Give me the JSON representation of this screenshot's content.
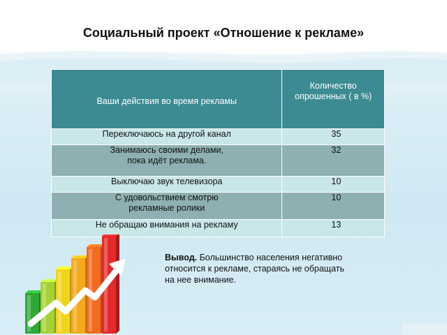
{
  "slide": {
    "title": "Социальный проект «Отношение к рекламе»"
  },
  "table": {
    "headers": {
      "actions": "Ваши действия во время рекламы",
      "count_line1": "Количество",
      "count_line2": "опрошенных ( в %)"
    },
    "rows": [
      {
        "action_lines": [
          "Переключаюсь на другой канал"
        ],
        "value": "35"
      },
      {
        "action_lines": [
          "Занимаюсь своими делами,",
          "пока идёт реклама."
        ],
        "value": "32"
      },
      {
        "action_lines": [
          "Выключаю звук телевизора"
        ],
        "value": "10"
      },
      {
        "action_lines": [
          "С удовольствием  смотрю",
          "рекламные ролики"
        ],
        "value": "10"
      },
      {
        "action_lines": [
          "Не обращаю внимания на рекламу"
        ],
        "value": "13"
      }
    ]
  },
  "conclusion": {
    "label": "Вывод.",
    "line1": " Большинство населения негативно",
    "line2": "относится к рекламе, стараясь  не обращать",
    "line3": "на нее  внимание."
  },
  "decoration": {
    "chart_icon": "bar-chart-growth-icon",
    "bar_colors": [
      "#2ea836",
      "#a6d036",
      "#f2d31c",
      "#f6a91c",
      "#f26a1f",
      "#e42a2a"
    ],
    "arrow_color": "#ffffff",
    "header_color": "#3d8b92",
    "row_light": "#c9e6e9",
    "row_dark": "#8fb0b2"
  }
}
